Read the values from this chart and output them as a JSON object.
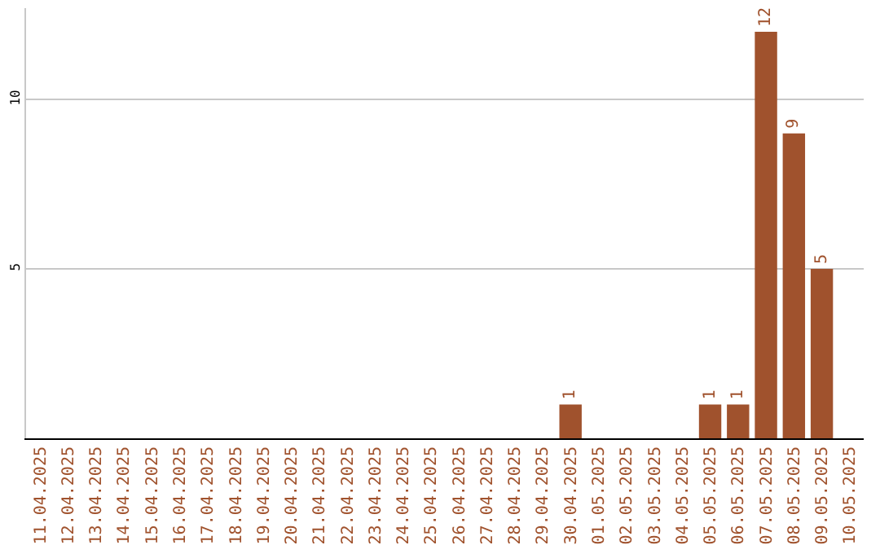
{
  "chart_data": {
    "type": "bar",
    "categories": [
      "11.04.2025",
      "12.04.2025",
      "13.04.2025",
      "14.04.2025",
      "15.04.2025",
      "16.04.2025",
      "17.04.2025",
      "18.04.2025",
      "19.04.2025",
      "20.04.2025",
      "21.04.2025",
      "22.04.2025",
      "23.04.2025",
      "24.04.2025",
      "25.04.2025",
      "26.04.2025",
      "27.04.2025",
      "28.04.2025",
      "29.04.2025",
      "30.04.2025",
      "01.05.2025",
      "02.05.2025",
      "03.05.2025",
      "04.05.2025",
      "05.05.2025",
      "06.05.2025",
      "07.05.2025",
      "08.05.2025",
      "09.05.2025",
      "10.05.2025"
    ],
    "values": [
      0,
      0,
      0,
      0,
      0,
      0,
      0,
      0,
      0,
      0,
      0,
      0,
      0,
      0,
      0,
      0,
      0,
      0,
      0,
      1,
      0,
      0,
      0,
      0,
      1,
      1,
      12,
      9,
      5,
      0
    ],
    "value_labels": [
      null,
      null,
      null,
      null,
      null,
      null,
      null,
      null,
      null,
      null,
      null,
      null,
      null,
      null,
      null,
      null,
      null,
      null,
      null,
      "1",
      null,
      null,
      null,
      null,
      "1",
      "1",
      "12",
      "9",
      "5",
      null
    ],
    "color": "#a0522d",
    "ylim": [
      0,
      12.7
    ],
    "yticks": [
      5,
      10
    ],
    "grid": "y",
    "legend": false
  }
}
